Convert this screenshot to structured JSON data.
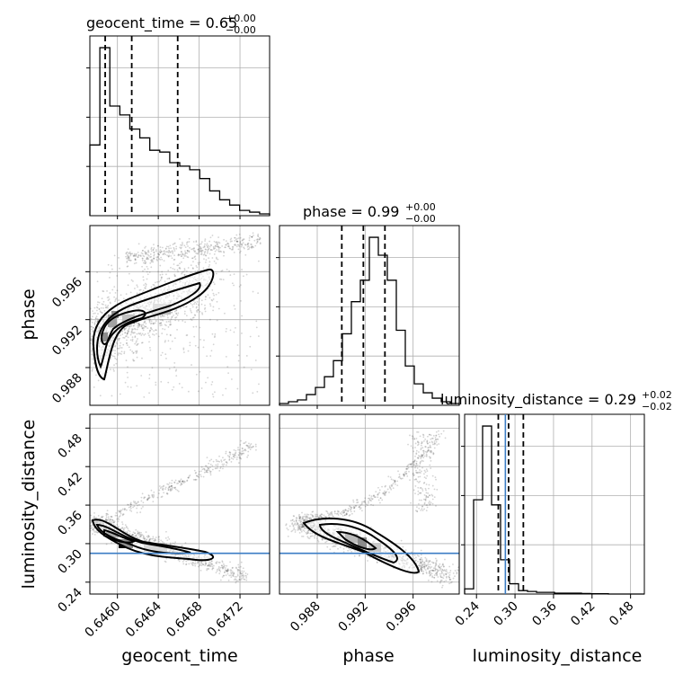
{
  "chart_data": {
    "type": "corner",
    "parameters": [
      {
        "name": "geocent_time",
        "median": "0.65",
        "plus": "+0.00",
        "minus": "−0.00",
        "ticks": [
          "0.6460",
          "0.6464",
          "0.6468",
          "0.6472"
        ],
        "range": [
          0.64573,
          0.64749
        ],
        "quantiles": [
          0.64588,
          0.64614,
          0.64659
        ],
        "hist": [
          40,
          95,
          62,
          57,
          49,
          44,
          37,
          36,
          30,
          28,
          26,
          21,
          14,
          9,
          6,
          3,
          2,
          1
        ]
      },
      {
        "name": "phase",
        "median": "0.99",
        "plus": "+0.00",
        "minus": "−0.00",
        "ticks": [
          "0.988",
          "0.992",
          "0.996"
        ],
        "range": [
          0.98485,
          0.99985
        ],
        "quantiles": [
          0.99005,
          0.99185,
          0.99365
        ],
        "hist": [
          1,
          2,
          3,
          6,
          10,
          16,
          25,
          40,
          58,
          70,
          94,
          84,
          70,
          42,
          22,
          12,
          7,
          4,
          2,
          1
        ]
      },
      {
        "name": "luminosity_distance",
        "median": "0.29",
        "plus": "+0.02",
        "minus": "−0.02",
        "ticks": [
          "0.24",
          "0.30",
          "0.36",
          "0.42",
          "0.48"
        ],
        "range": [
          0.2215,
          0.5015
        ],
        "quantiles": [
          0.274,
          0.29,
          0.313
        ],
        "hist": [
          3,
          55,
          98,
          52,
          20,
          6,
          2,
          1.5,
          1,
          1,
          0.5,
          0.5,
          0.5,
          0.3,
          0.2,
          0.2,
          0,
          0,
          0,
          0
        ]
      }
    ],
    "truth": {
      "luminosity_distance": 0.285
    }
  },
  "colors": {
    "truth_line": "#3b7dc4"
  }
}
